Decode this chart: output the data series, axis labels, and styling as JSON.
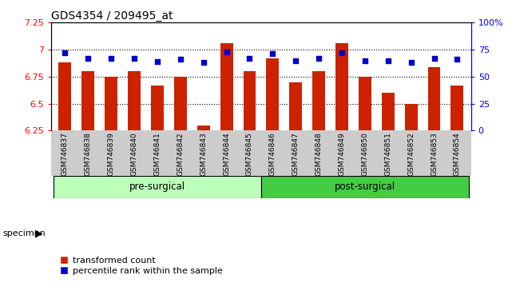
{
  "title": "GDS4354 / 209495_at",
  "samples": [
    "GSM746837",
    "GSM746838",
    "GSM746839",
    "GSM746840",
    "GSM746841",
    "GSM746842",
    "GSM746843",
    "GSM746844",
    "GSM746845",
    "GSM746846",
    "GSM746847",
    "GSM746848",
    "GSM746849",
    "GSM746850",
    "GSM746851",
    "GSM746852",
    "GSM746853",
    "GSM746854"
  ],
  "red_values": [
    6.88,
    6.8,
    6.75,
    6.8,
    6.67,
    6.75,
    6.3,
    7.06,
    6.8,
    6.92,
    6.7,
    6.8,
    7.06,
    6.75,
    6.6,
    6.5,
    6.84,
    6.67
  ],
  "blue_values": [
    72,
    67,
    67,
    67,
    64,
    66,
    63,
    73,
    67,
    71,
    65,
    67,
    72,
    65,
    65,
    63,
    67,
    66
  ],
  "ylim_left": [
    6.25,
    7.25
  ],
  "ylim_right": [
    0,
    100
  ],
  "yticks_left": [
    6.25,
    6.5,
    6.75,
    7.0,
    7.25
  ],
  "ytick_labels_left": [
    "6.25",
    "6.5",
    "6.75",
    "7",
    "7.25"
  ],
  "yticks_right": [
    0,
    25,
    50,
    75,
    100
  ],
  "ytick_labels_right": [
    "0",
    "25",
    "50",
    "75",
    "100%"
  ],
  "hgrid_values": [
    6.5,
    6.75,
    7.0
  ],
  "pre_surgical_count": 9,
  "group_labels": [
    "pre-surgical",
    "post-surgical"
  ],
  "legend_items": [
    "transformed count",
    "percentile rank within the sample"
  ],
  "bar_color": "#cc2200",
  "dot_color": "#0000cc",
  "pre_bg": "#bbffbb",
  "post_bg": "#44cc44",
  "label_bg": "#cccccc",
  "bar_bottom": 6.25,
  "bar_width": 0.55,
  "specimen_label": "specimen"
}
